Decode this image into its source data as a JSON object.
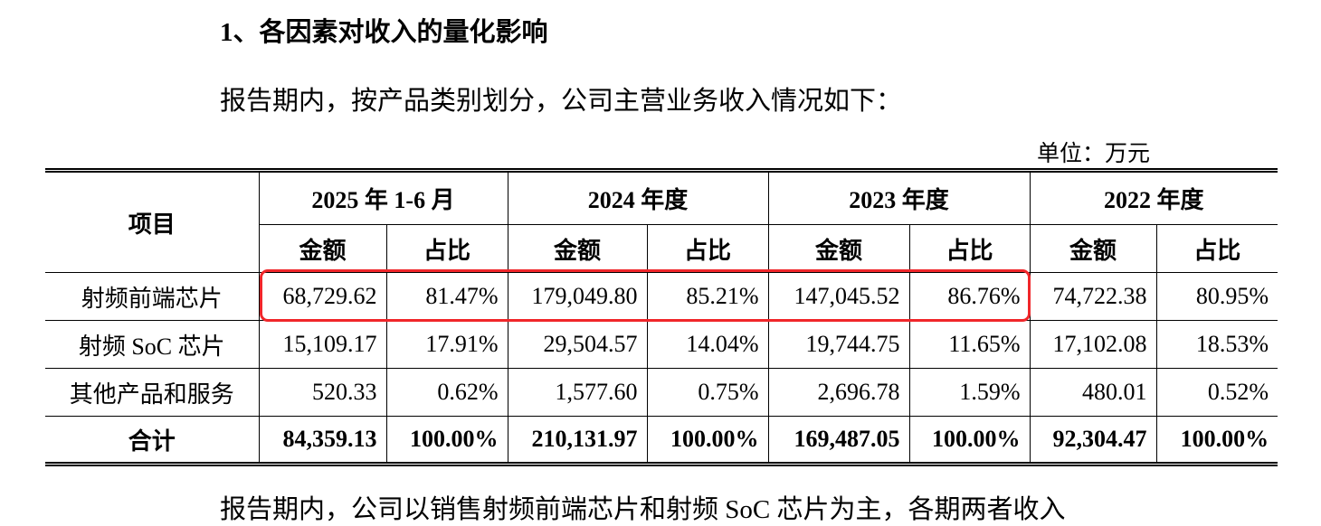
{
  "heading": "1、各因素对收入的量化影响",
  "intro": "报告期内，按产品类别划分，公司主营业务收入情况如下：",
  "unit": "单位：万元",
  "table": {
    "item_header": "项目",
    "periods": [
      "2025 年 1-6 月",
      "2024 年度",
      "2023 年度",
      "2022 年度"
    ],
    "sub_headers": [
      "金额",
      "占比",
      "金额",
      "占比",
      "金额",
      "占比",
      "金额",
      "占比"
    ],
    "rows": [
      [
        "射频前端芯片",
        "68,729.62",
        "81.47%",
        "179,049.80",
        "85.21%",
        "147,045.52",
        "86.76%",
        "74,722.38",
        "80.95%"
      ],
      [
        "射频 SoC 芯片",
        "15,109.17",
        "17.91%",
        "29,504.57",
        "14.04%",
        "19,744.75",
        "11.65%",
        "17,102.08",
        "18.53%"
      ],
      [
        "其他产品和服务",
        "520.33",
        "0.62%",
        "1,577.60",
        "0.75%",
        "2,696.78",
        "1.59%",
        "480.01",
        "0.52%"
      ],
      [
        "合计",
        "84,359.13",
        "100.00%",
        "210,131.97",
        "100.00%",
        "169,487.05",
        "100.00%",
        "92,304.47",
        "100.00%"
      ]
    ]
  },
  "trailing_text": "报告期内，公司以销售射频前端芯片和射频 SoC 芯片为主，各期两者收入"
}
